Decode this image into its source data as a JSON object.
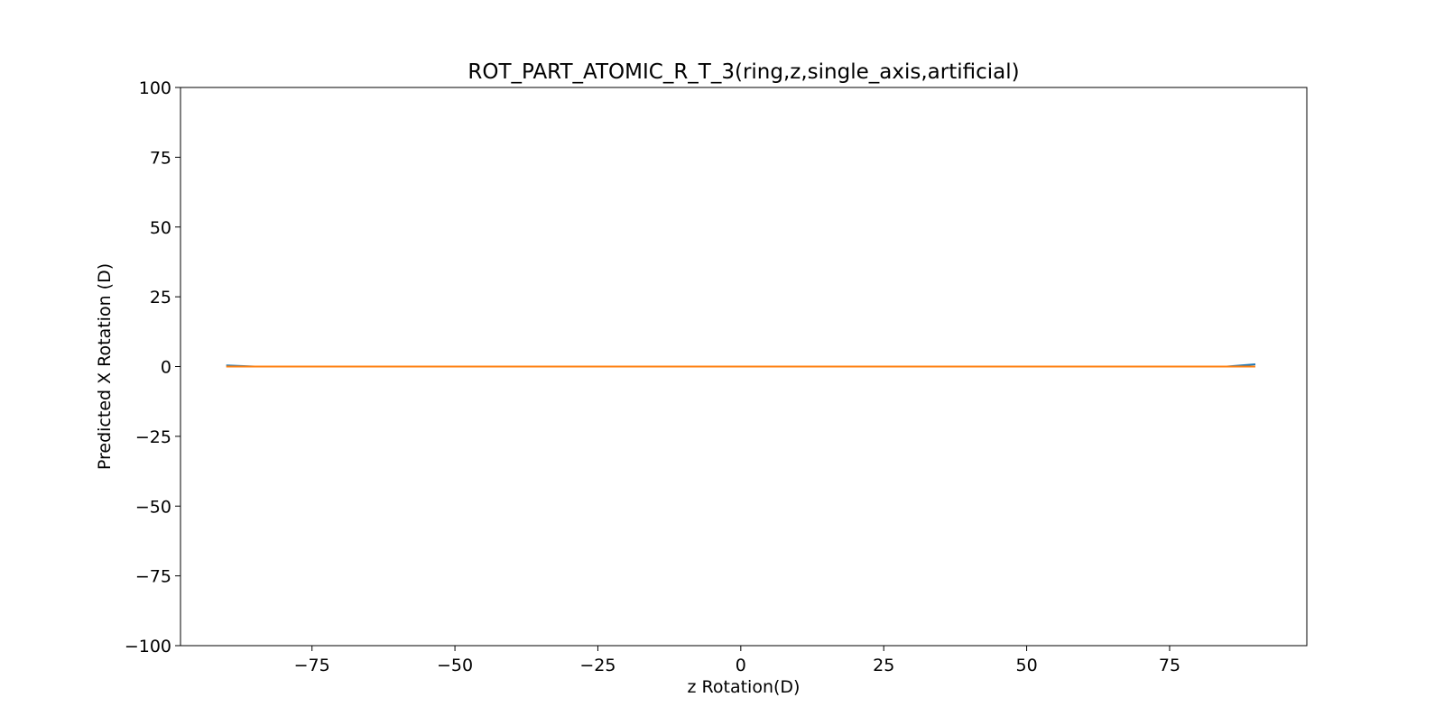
{
  "chart_data": {
    "type": "line",
    "title": "ROT_PART_ATOMIC_R_T_3(ring,z,single_axis,artificial)",
    "xlabel": "z Rotation(D)",
    "ylabel": "Predicted X Rotation (D)",
    "xlim": [
      -98,
      99
    ],
    "ylim": [
      -100,
      100
    ],
    "xticks": [
      -75,
      -50,
      -25,
      0,
      25,
      50,
      75
    ],
    "xtick_labels": [
      "−75",
      "−50",
      "−25",
      "0",
      "25",
      "50",
      "75"
    ],
    "yticks": [
      100,
      75,
      50,
      25,
      0,
      -25,
      -50,
      -75,
      -100
    ],
    "ytick_labels": [
      "100",
      "75",
      "50",
      "25",
      "0",
      "−25",
      "−50",
      "−75",
      "−100"
    ],
    "grid": false,
    "legend": false,
    "series": [
      {
        "color": "#1f77b4",
        "x": [
          -90,
          -85,
          -80,
          -70,
          -60,
          -50,
          -40,
          -30,
          -20,
          -10,
          0,
          10,
          20,
          30,
          40,
          50,
          60,
          70,
          80,
          85,
          90
        ],
        "y": [
          0.4,
          0,
          0,
          0,
          0,
          0,
          0,
          0,
          0,
          0,
          0,
          0,
          0,
          0,
          0,
          0,
          0,
          0,
          0,
          0,
          0.8
        ]
      },
      {
        "color": "#ff7f0e",
        "x": [
          -90,
          -85,
          -80,
          -70,
          -60,
          -50,
          -40,
          -30,
          -20,
          -10,
          0,
          10,
          20,
          30,
          40,
          50,
          60,
          70,
          80,
          85,
          90
        ],
        "y": [
          0,
          0,
          0,
          0,
          0,
          0,
          0,
          0,
          0,
          0,
          0,
          0,
          0,
          0,
          0,
          0,
          0,
          0,
          0,
          0,
          0
        ]
      }
    ]
  }
}
